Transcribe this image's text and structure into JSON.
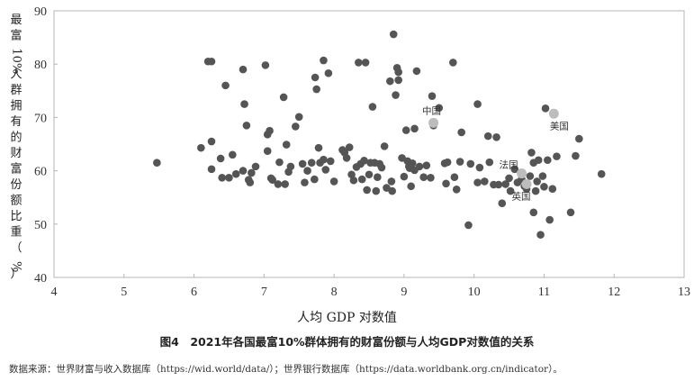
{
  "chart_data": {
    "type": "scatter",
    "xlabel": "人均 GDP 对数值",
    "ylabel": "最富10%人群拥有的财富份额比重（%）",
    "xlim": [
      4,
      13
    ],
    "ylim": [
      40,
      90
    ],
    "xticks": [
      4,
      5,
      6,
      7,
      8,
      9,
      10,
      11,
      12,
      13
    ],
    "yticks": [
      40,
      50,
      60,
      70,
      80,
      90
    ],
    "grid": false,
    "colors": {
      "point": "#555555",
      "highlight": "#bdbdbd",
      "axis": "#b5b5b5"
    },
    "points": [
      [
        5.47,
        61.5
      ],
      [
        6.1,
        64.3
      ],
      [
        6.2,
        80.5
      ],
      [
        6.25,
        80.5
      ],
      [
        6.25,
        65.5
      ],
      [
        6.25,
        60.3
      ],
      [
        6.38,
        62.3
      ],
      [
        6.4,
        58.7
      ],
      [
        6.45,
        76.0
      ],
      [
        6.5,
        58.7
      ],
      [
        6.55,
        63.0
      ],
      [
        6.6,
        59.4
      ],
      [
        6.7,
        79.0
      ],
      [
        6.72,
        72.5
      ],
      [
        6.75,
        68.5
      ],
      [
        6.7,
        60.0
      ],
      [
        6.78,
        58.3
      ],
      [
        6.8,
        57.8
      ],
      [
        6.82,
        59.6
      ],
      [
        6.88,
        60.8
      ],
      [
        7.02,
        79.8
      ],
      [
        7.05,
        66.8
      ],
      [
        7.05,
        63.7
      ],
      [
        7.08,
        67.5
      ],
      [
        7.1,
        58.6
      ],
      [
        7.12,
        58.3
      ],
      [
        7.2,
        57.5
      ],
      [
        7.22,
        61.6
      ],
      [
        7.28,
        73.8
      ],
      [
        7.3,
        57.5
      ],
      [
        7.32,
        64.9
      ],
      [
        7.35,
        59.8
      ],
      [
        7.38,
        60.8
      ],
      [
        7.45,
        68.3
      ],
      [
        7.5,
        70.1
      ],
      [
        7.55,
        61.3
      ],
      [
        7.58,
        57.8
      ],
      [
        7.62,
        60.0
      ],
      [
        7.68,
        61.5
      ],
      [
        7.72,
        58.4
      ],
      [
        7.73,
        77.5
      ],
      [
        7.75,
        75.3
      ],
      [
        7.78,
        64.3
      ],
      [
        7.8,
        61.5
      ],
      [
        7.85,
        80.7
      ],
      [
        7.85,
        62.1
      ],
      [
        7.88,
        60.2
      ],
      [
        7.92,
        78.3
      ],
      [
        7.95,
        61.8
      ],
      [
        8.0,
        58.0
      ],
      [
        8.12,
        63.9
      ],
      [
        8.15,
        63.4
      ],
      [
        8.18,
        62.4
      ],
      [
        8.22,
        64.4
      ],
      [
        8.25,
        59.3
      ],
      [
        8.28,
        58.2
      ],
      [
        8.32,
        60.7
      ],
      [
        8.35,
        80.3
      ],
      [
        8.38,
        61.3
      ],
      [
        8.4,
        58.4
      ],
      [
        8.43,
        61.9
      ],
      [
        8.45,
        80.3
      ],
      [
        8.47,
        56.4
      ],
      [
        8.5,
        59.3
      ],
      [
        8.52,
        61.5
      ],
      [
        8.55,
        72.0
      ],
      [
        8.58,
        61.5
      ],
      [
        8.6,
        56.2
      ],
      [
        8.62,
        58.8
      ],
      [
        8.65,
        61.3
      ],
      [
        8.68,
        60.6
      ],
      [
        8.72,
        64.6
      ],
      [
        8.75,
        56.8
      ],
      [
        8.8,
        76.8
      ],
      [
        8.82,
        58.0
      ],
      [
        8.83,
        56.2
      ],
      [
        8.85,
        85.6
      ],
      [
        8.88,
        74.2
      ],
      [
        8.9,
        79.3
      ],
      [
        8.92,
        78.5
      ],
      [
        8.92,
        77.0
      ],
      [
        8.97,
        62.4
      ],
      [
        9.0,
        58.9
      ],
      [
        9.03,
        67.6
      ],
      [
        9.05,
        61.8
      ],
      [
        9.07,
        60.8
      ],
      [
        9.08,
        60.5
      ],
      [
        9.1,
        57.1
      ],
      [
        9.12,
        61.4
      ],
      [
        9.15,
        67.9
      ],
      [
        9.15,
        60.1
      ],
      [
        9.18,
        78.7
      ],
      [
        9.22,
        60.8
      ],
      [
        9.28,
        58.8
      ],
      [
        9.32,
        61.0
      ],
      [
        9.38,
        58.7
      ],
      [
        9.4,
        74.0
      ],
      [
        9.42,
        68.5
      ],
      [
        9.5,
        71.8
      ],
      [
        9.58,
        61.4
      ],
      [
        9.6,
        57.6
      ],
      [
        9.62,
        61.6
      ],
      [
        9.7,
        80.3
      ],
      [
        9.72,
        58.8
      ],
      [
        9.75,
        56.5
      ],
      [
        9.8,
        61.7
      ],
      [
        9.82,
        67.2
      ],
      [
        9.92,
        49.8
      ],
      [
        9.95,
        61.3
      ],
      [
        10.05,
        72.5
      ],
      [
        10.05,
        57.8
      ],
      [
        10.08,
        60.6
      ],
      [
        10.15,
        58.0
      ],
      [
        10.2,
        66.5
      ],
      [
        10.22,
        61.6
      ],
      [
        10.28,
        57.4
      ],
      [
        10.32,
        66.3
      ],
      [
        10.35,
        57.4
      ],
      [
        10.4,
        53.9
      ],
      [
        10.45,
        57.5
      ],
      [
        10.5,
        58.6
      ],
      [
        10.52,
        56.2
      ],
      [
        10.58,
        60.3
      ],
      [
        10.62,
        57.8
      ],
      [
        10.68,
        58.4
      ],
      [
        10.72,
        57.1
      ],
      [
        10.75,
        56.6
      ],
      [
        10.8,
        59.0
      ],
      [
        10.82,
        63.4
      ],
      [
        10.85,
        52.2
      ],
      [
        10.88,
        56.2
      ],
      [
        10.9,
        58.0
      ],
      [
        10.92,
        62.0
      ],
      [
        10.95,
        48.0
      ],
      [
        10.98,
        59.0
      ],
      [
        11.0,
        57.0
      ],
      [
        11.02,
        71.7
      ],
      [
        11.08,
        50.8
      ],
      [
        11.12,
        56.6
      ],
      [
        11.18,
        62.7
      ],
      [
        11.38,
        52.2
      ],
      [
        11.45,
        62.8
      ],
      [
        11.5,
        66.0
      ],
      [
        11.82,
        59.4
      ],
      [
        11.05,
        62.0
      ],
      [
        10.85,
        61.5
      ]
    ],
    "highlighted": [
      {
        "name": "中国",
        "x": 9.42,
        "y": 69.0
      },
      {
        "name": "法国",
        "x": 10.68,
        "y": 59.5
      },
      {
        "name": "英国",
        "x": 10.75,
        "y": 57.5
      },
      {
        "name": "美国",
        "x": 11.14,
        "y": 70.7
      }
    ]
  },
  "caption": "图4　2021年各国最富10%群体拥有的财富份额与人均GDP对数值的关系",
  "source": "数据来源：世界财富与收入数据库（https://wid.world/data/）；世界银行数据库（https://data.worldbank.org.cn/indicator）。"
}
